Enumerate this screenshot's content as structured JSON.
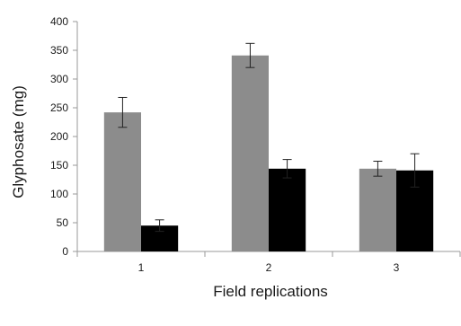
{
  "chart_data": {
    "type": "bar",
    "title": "",
    "xlabel": "Field replications",
    "ylabel": "Glyphosate (mg)",
    "categories": [
      "1",
      "2",
      "3"
    ],
    "ylim": [
      0,
      400
    ],
    "yticks": [
      0,
      50,
      100,
      150,
      200,
      250,
      300,
      350,
      400
    ],
    "grid": false,
    "legend": "none",
    "series": [
      {
        "color": "#8c8c8c",
        "values": [
          242,
          341,
          144
        ],
        "errors": [
          26,
          21,
          13
        ]
      },
      {
        "color": "#000000",
        "values": [
          45,
          144,
          141
        ],
        "errors": [
          10,
          16,
          29
        ]
      }
    ]
  }
}
